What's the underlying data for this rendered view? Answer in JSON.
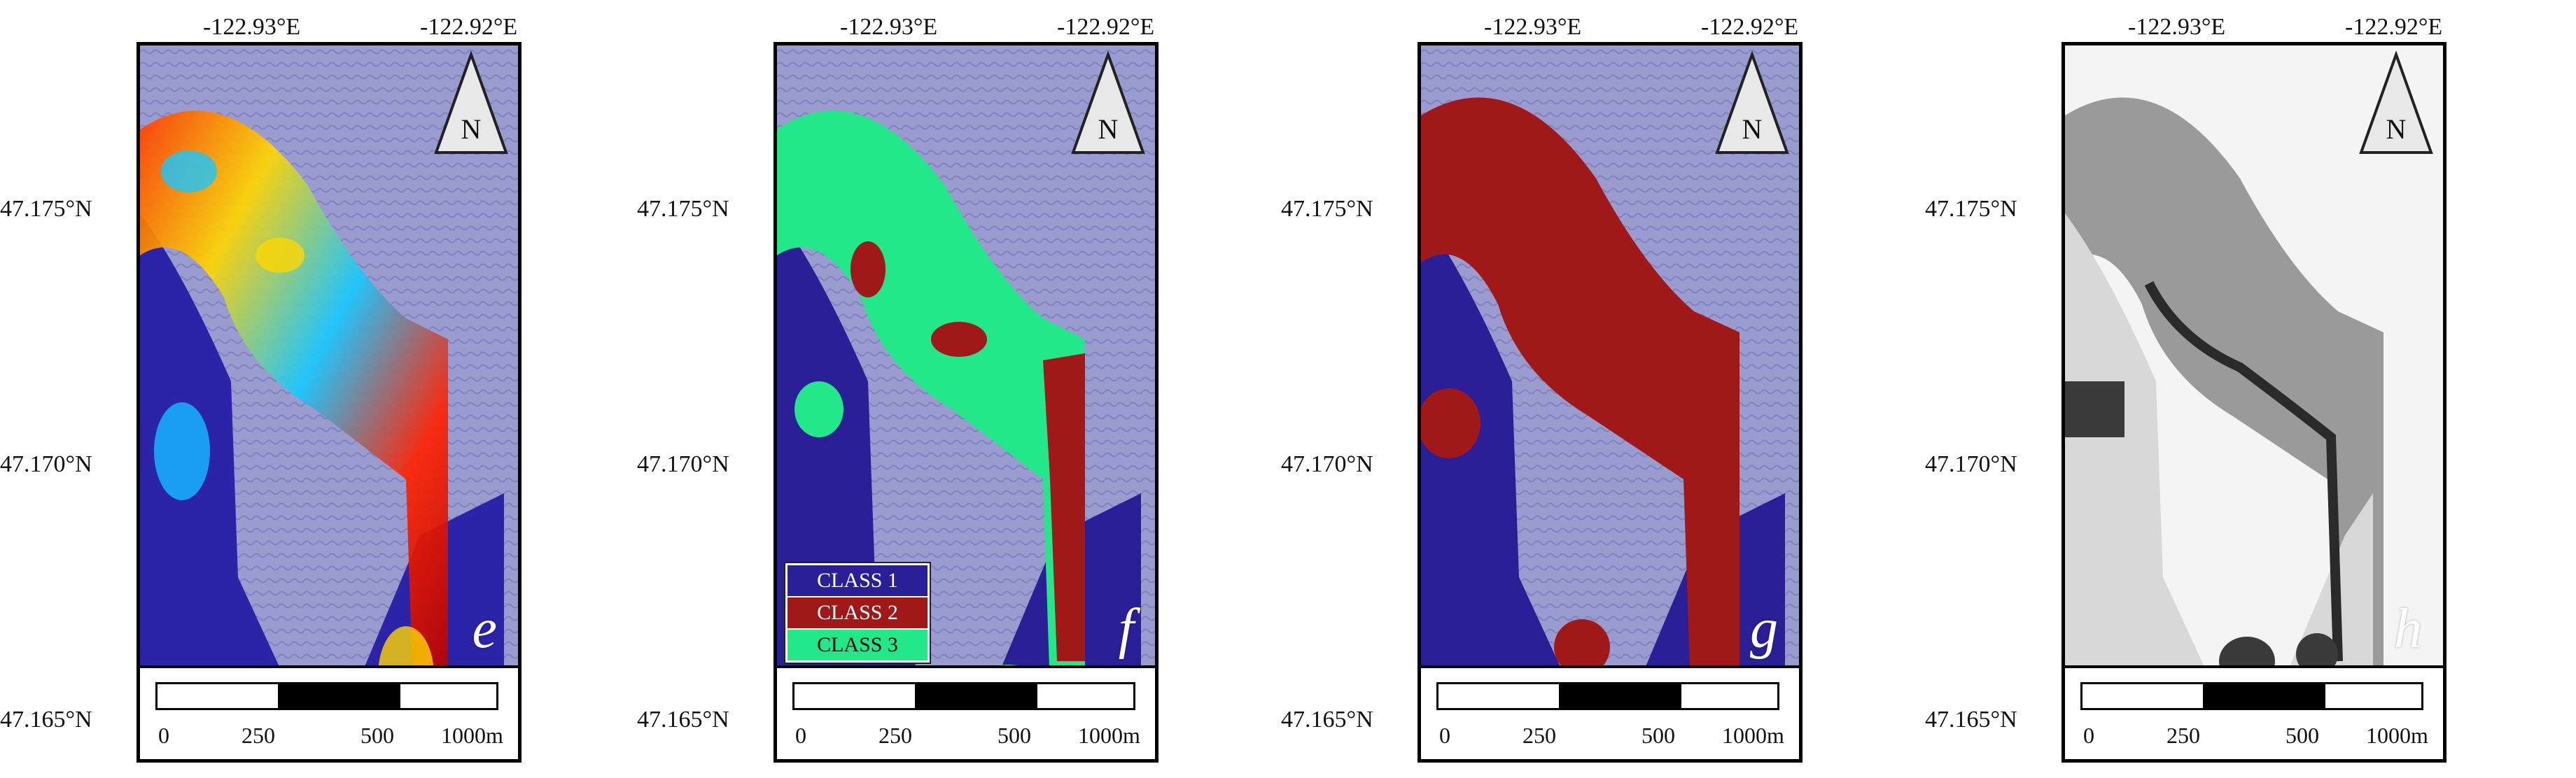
{
  "coordinates": {
    "lon_left": "-122.93°E",
    "lon_right": "-122.92°E",
    "lat_top": "47.175°N",
    "lat_mid": "47.170°N",
    "lat_bottom": "47.165°N"
  },
  "north_arrow_label": "N",
  "scale_bar": {
    "ticks": [
      "0",
      "250",
      "500",
      "1000m"
    ]
  },
  "panels": [
    {
      "letter": "e",
      "style": "heatmap"
    },
    {
      "letter": "f",
      "style": "classes"
    },
    {
      "letter": "g",
      "style": "binary"
    },
    {
      "letter": "h",
      "style": "grayscale"
    }
  ],
  "legend": {
    "items": [
      {
        "label": "CLASS 1",
        "color": "#2a1f96"
      },
      {
        "label": "CLASS 2",
        "color": "#a01818"
      },
      {
        "label": "CLASS 3",
        "color": "#22e88a"
      }
    ]
  },
  "colors": {
    "background_blue": "#8a8cc4",
    "class1": "#2a1f96",
    "class2": "#a01818",
    "class3": "#22e88a"
  }
}
